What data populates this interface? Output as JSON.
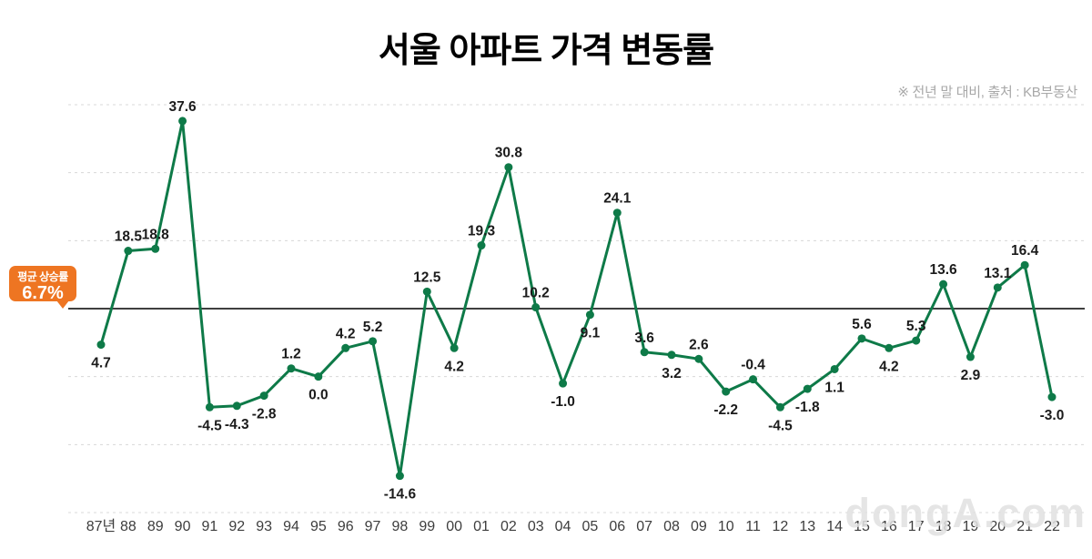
{
  "chart_data": {
    "type": "line",
    "title": "서울 아파트 가격 변동률",
    "note": "※ 전년 말 대비, 출처 : KB부동산",
    "average": {
      "label": "평균 상승률",
      "value": "6.7%"
    },
    "watermark": "dongA.com",
    "x_labels": [
      "87년",
      "88",
      "89",
      "90",
      "91",
      "92",
      "93",
      "94",
      "95",
      "96",
      "97",
      "98",
      "99",
      "00",
      "01",
      "02",
      "03",
      "04",
      "05",
      "06",
      "07",
      "08",
      "09",
      "10",
      "11",
      "12",
      "13",
      "14",
      "15",
      "16",
      "17",
      "18",
      "19",
      "20",
      "21",
      "22"
    ],
    "values": [
      4.7,
      18.5,
      18.8,
      37.6,
      -4.5,
      -4.3,
      -2.8,
      1.2,
      0.0,
      4.2,
      5.2,
      -14.6,
      12.5,
      4.2,
      19.3,
      30.8,
      10.2,
      -1.0,
      9.1,
      24.1,
      3.6,
      3.2,
      2.6,
      -2.2,
      -0.4,
      -4.5,
      -1.8,
      1.1,
      5.6,
      4.2,
      5.3,
      13.6,
      2.9,
      13.1,
      16.4,
      -3.0
    ],
    "label_position": [
      "below",
      "above",
      "above",
      "above",
      "below",
      "below",
      "below",
      "above",
      "below",
      "above",
      "above",
      "below",
      "above",
      "below",
      "above",
      "above",
      "above",
      "below",
      "below",
      "above",
      "above",
      "below",
      "above",
      "below",
      "above",
      "below",
      "below",
      "below",
      "above",
      "below",
      "above",
      "above",
      "below",
      "above",
      "above",
      "below"
    ],
    "ylim": [
      -20,
      40
    ],
    "gridline_values": [
      40,
      30,
      20,
      10,
      0,
      -10,
      -20
    ],
    "average_line_gridline": 10,
    "colors": {
      "line": "#0e7a48",
      "marker": "#0e7a48",
      "grid": "#d8d8d8",
      "average_line": "#3f3f3f",
      "data_label": "#1b1b1b",
      "axis_label": "#3d3d3d",
      "badge": "#ee7522"
    },
    "legend": "none",
    "grid": "dashed-horizontal"
  }
}
